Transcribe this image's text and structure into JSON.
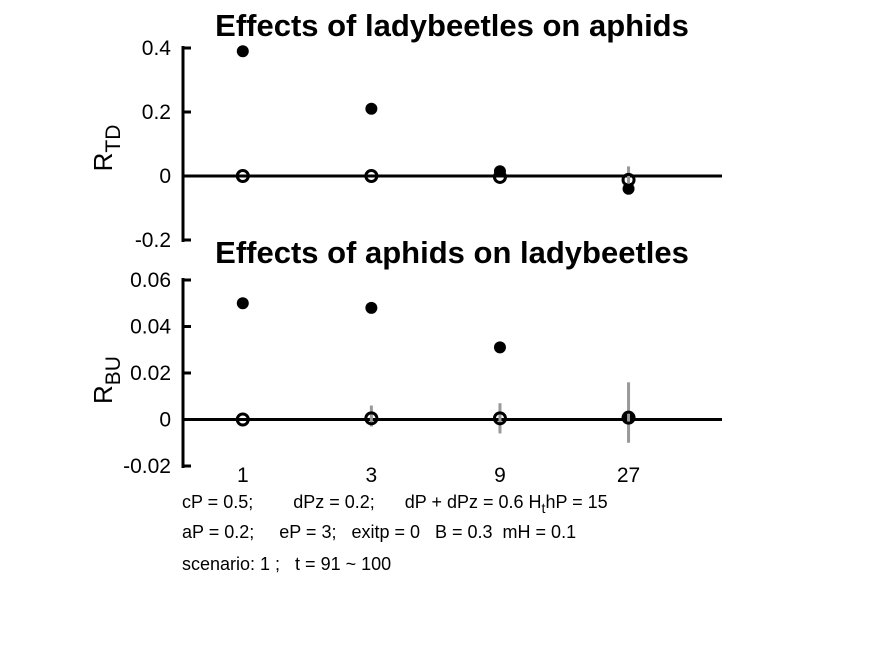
{
  "chart_data": [
    {
      "type": "scatter",
      "title": "Effects of ladybeetles on aphids",
      "ylabel_main": "R",
      "ylabel_sub": "TD",
      "ylim": [
        -0.2,
        0.4
      ],
      "y_ticks": [
        -0.2,
        0,
        0.2,
        0.4
      ],
      "y_tick_labels": [
        "-0.2",
        "0",
        "0.2",
        "0.4"
      ],
      "x": [
        1,
        3,
        9,
        27
      ],
      "x_scale": "log",
      "xlim": [
        0.6,
        60
      ],
      "series": [
        {
          "marker": "filled",
          "values": [
            0.39,
            0.21,
            0.015,
            -0.04
          ]
        },
        {
          "marker": "open",
          "values": [
            0,
            0,
            -0.003,
            -0.012
          ],
          "err_low": [
            0,
            0,
            0,
            -0.03
          ],
          "err_high": [
            0,
            0,
            0,
            0.03
          ]
        }
      ],
      "zero_line": true,
      "grid": false
    },
    {
      "type": "scatter",
      "title": "Effects of aphids on ladybeetles",
      "ylabel_main": "R",
      "ylabel_sub": "BU",
      "ylim": [
        -0.02,
        0.06
      ],
      "y_ticks": [
        -0.02,
        0,
        0.02,
        0.04,
        0.06
      ],
      "y_tick_labels": [
        "-0.02",
        "0",
        "0.02",
        "0.04",
        "0.06"
      ],
      "x": [
        1,
        3,
        9,
        27
      ],
      "x_tick_labels": [
        "1",
        "3",
        "9",
        "27"
      ],
      "x_scale": "log",
      "xlim": [
        0.6,
        60
      ],
      "series": [
        {
          "marker": "filled",
          "values": [
            0.05,
            0.048,
            0.031,
            0.001
          ]
        },
        {
          "marker": "open",
          "values": [
            0,
            0.0005,
            0.0005,
            0.0008
          ],
          "err_low": [
            0,
            -0.003,
            -0.006,
            -0.01
          ],
          "err_high": [
            0,
            0.006,
            0.007,
            0.016
          ]
        }
      ],
      "zero_line": true,
      "grid": false
    }
  ],
  "params": {
    "line1_pre": "cP = 0.5;        dPz = 0.2;      dP + dPz = 0.6 H",
    "line1_sub": "t",
    "line1_post": "hP = 15",
    "line2": "aP = 0.2;     eP = 3;   exitp = 0   B = 0.3  mH = 0.1",
    "line3": "scenario: 1 ;   t = 91 ~ 100"
  },
  "colors": {
    "marker": "#000000",
    "errorbar": "#999999",
    "axis": "#000000"
  }
}
